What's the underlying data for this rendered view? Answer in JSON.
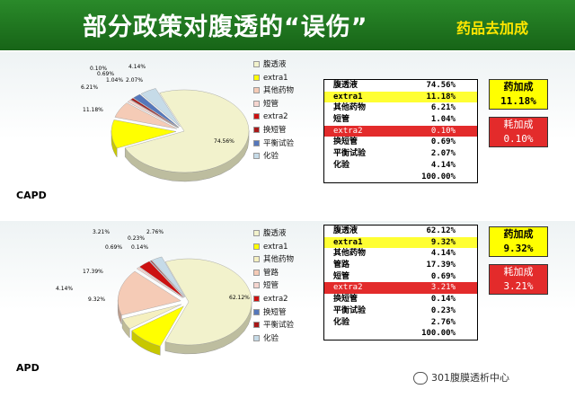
{
  "header": {
    "title": "部分政策对腹透的“误伤”",
    "subtitle": "药品去加成"
  },
  "sections": [
    {
      "label": "CAPD",
      "pie": [
        {
          "name": "腹透液",
          "value": 74.56,
          "label": "74.56%",
          "color": "#f2f2cc"
        },
        {
          "name": "extra1",
          "value": 11.18,
          "label": "11.18%",
          "color": "#ffff00"
        },
        {
          "name": "其他药物",
          "value": 6.21,
          "label": "6.21%",
          "color": "#f5cbb6"
        },
        {
          "name": "短管",
          "value": 1.04,
          "label": "1.04%",
          "color": "#f5d5cf"
        },
        {
          "name": "extra2",
          "value": 0.1,
          "label": "0.10%",
          "color": "#cc1111"
        },
        {
          "name": "换短管",
          "value": 0.69,
          "label": "0.69%",
          "color": "#a91818"
        },
        {
          "name": "平衡试验",
          "value": 2.07,
          "label": "2.07%",
          "color": "#5577bb"
        },
        {
          "name": "化验",
          "value": 4.14,
          "label": "4.14%",
          "color": "#c6dbe8"
        }
      ],
      "legend": [
        "腹透液",
        "extra1",
        "其他药物",
        "短管",
        "extra2",
        "换短管",
        "平衡试验",
        "化验"
      ],
      "table": [
        {
          "name": "腹透液",
          "value": "74.56%",
          "style": ""
        },
        {
          "name": "extra1",
          "value": "11.18%",
          "style": "hl"
        },
        {
          "name": "其他药物",
          "value": "6.21%",
          "style": ""
        },
        {
          "name": "短管",
          "value": "1.04%",
          "style": ""
        },
        {
          "name": "extra2",
          "value": "0.10%",
          "style": "red"
        },
        {
          "name": "换短管",
          "value": "0.69%",
          "style": ""
        },
        {
          "name": "平衡试验",
          "value": "2.07%",
          "style": ""
        },
        {
          "name": "化验",
          "value": "4.14%",
          "style": ""
        },
        {
          "name": "",
          "value": "100.00%",
          "style": ""
        }
      ],
      "boxes": [
        {
          "line1": "药加成",
          "line2": "11.18%",
          "style": "y"
        },
        {
          "line1": "耗加成",
          "line2": "0.10%",
          "style": "r"
        }
      ]
    },
    {
      "label": "APD",
      "pie": [
        {
          "name": "腹透液",
          "value": 62.12,
          "label": "62.12%",
          "color": "#f2f2cc"
        },
        {
          "name": "extra1",
          "value": 9.32,
          "label": "9.32%",
          "color": "#ffff00"
        },
        {
          "name": "其他药物",
          "value": 4.14,
          "label": "4.14%",
          "color": "#f5f0c0"
        },
        {
          "name": "管路",
          "value": 17.39,
          "label": "17.39%",
          "color": "#f5cbb6"
        },
        {
          "name": "短管",
          "value": 0.69,
          "label": "0.69%",
          "color": "#f5d5cf"
        },
        {
          "name": "extra2",
          "value": 3.21,
          "label": "3.21%",
          "color": "#cc1111"
        },
        {
          "name": "换短管",
          "value": 0.14,
          "label": "0.14%",
          "color": "#5577bb"
        },
        {
          "name": "平衡试验",
          "value": 0.23,
          "label": "0.23%",
          "color": "#a91818"
        },
        {
          "name": "化验",
          "value": 2.76,
          "label": "2.76%",
          "color": "#c6dbe8"
        }
      ],
      "legend": [
        "腹透液",
        "extra1",
        "其他药物",
        "管路",
        "短管",
        "extra2",
        "换短管",
        "平衡试验",
        "化验"
      ],
      "table": [
        {
          "name": "腹透液",
          "value": "62.12%",
          "style": ""
        },
        {
          "name": "extra1",
          "value": "9.32%",
          "style": "hl"
        },
        {
          "name": "其他药物",
          "value": "4.14%",
          "style": ""
        },
        {
          "name": "管路",
          "value": "17.39%",
          "style": ""
        },
        {
          "name": "短管",
          "value": "0.69%",
          "style": ""
        },
        {
          "name": "extra2",
          "value": "3.21%",
          "style": "red"
        },
        {
          "name": "换短管",
          "value": "0.14%",
          "style": ""
        },
        {
          "name": "平衡试验",
          "value": "0.23%",
          "style": ""
        },
        {
          "name": "化验",
          "value": "2.76%",
          "style": ""
        },
        {
          "name": "",
          "value": "100.00%",
          "style": ""
        }
      ],
      "boxes": [
        {
          "line1": "药加成",
          "line2": "9.32%",
          "style": "y"
        },
        {
          "line1": "耗加成",
          "line2": "3.21%",
          "style": "r"
        }
      ]
    }
  ],
  "watermark": "301腹膜透析中心"
}
